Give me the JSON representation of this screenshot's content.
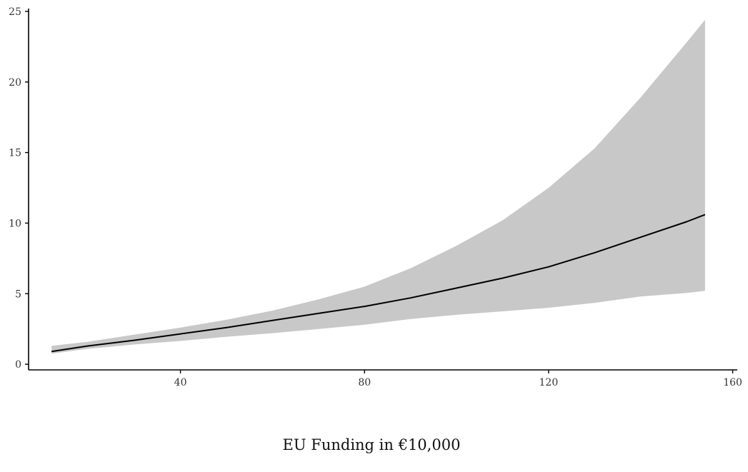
{
  "chart_data": {
    "type": "line",
    "title": "",
    "xlabel": "EU Funding in €10,000",
    "ylabel": "",
    "xlim": [
      7,
      161
    ],
    "ylim": [
      -0.4,
      25.2
    ],
    "x_ticks": [
      40,
      80,
      120,
      160
    ],
    "y_ticks": [
      0,
      5,
      10,
      15,
      20,
      25
    ],
    "grid": false,
    "legend": "none",
    "colors": {
      "line": "#000000",
      "band": "#c8c8c8",
      "axis": "#000000"
    },
    "series": [
      {
        "x": [
          12,
          20,
          30,
          40,
          50,
          60,
          70,
          80,
          90,
          100,
          110,
          120,
          130,
          140,
          150,
          154
        ],
        "y": [
          0.9,
          1.3,
          1.7,
          2.15,
          2.6,
          3.1,
          3.6,
          4.1,
          4.7,
          5.4,
          6.1,
          6.9,
          7.9,
          9.0,
          10.1,
          10.6
        ],
        "lower": [
          0.75,
          1.1,
          1.4,
          1.65,
          1.95,
          2.2,
          2.5,
          2.8,
          3.2,
          3.5,
          3.75,
          4.0,
          4.35,
          4.8,
          5.05,
          5.2
        ],
        "upper": [
          1.3,
          1.6,
          2.1,
          2.6,
          3.15,
          3.8,
          4.6,
          5.5,
          6.8,
          8.4,
          10.2,
          12.5,
          15.3,
          18.9,
          22.8,
          24.4
        ]
      }
    ]
  }
}
